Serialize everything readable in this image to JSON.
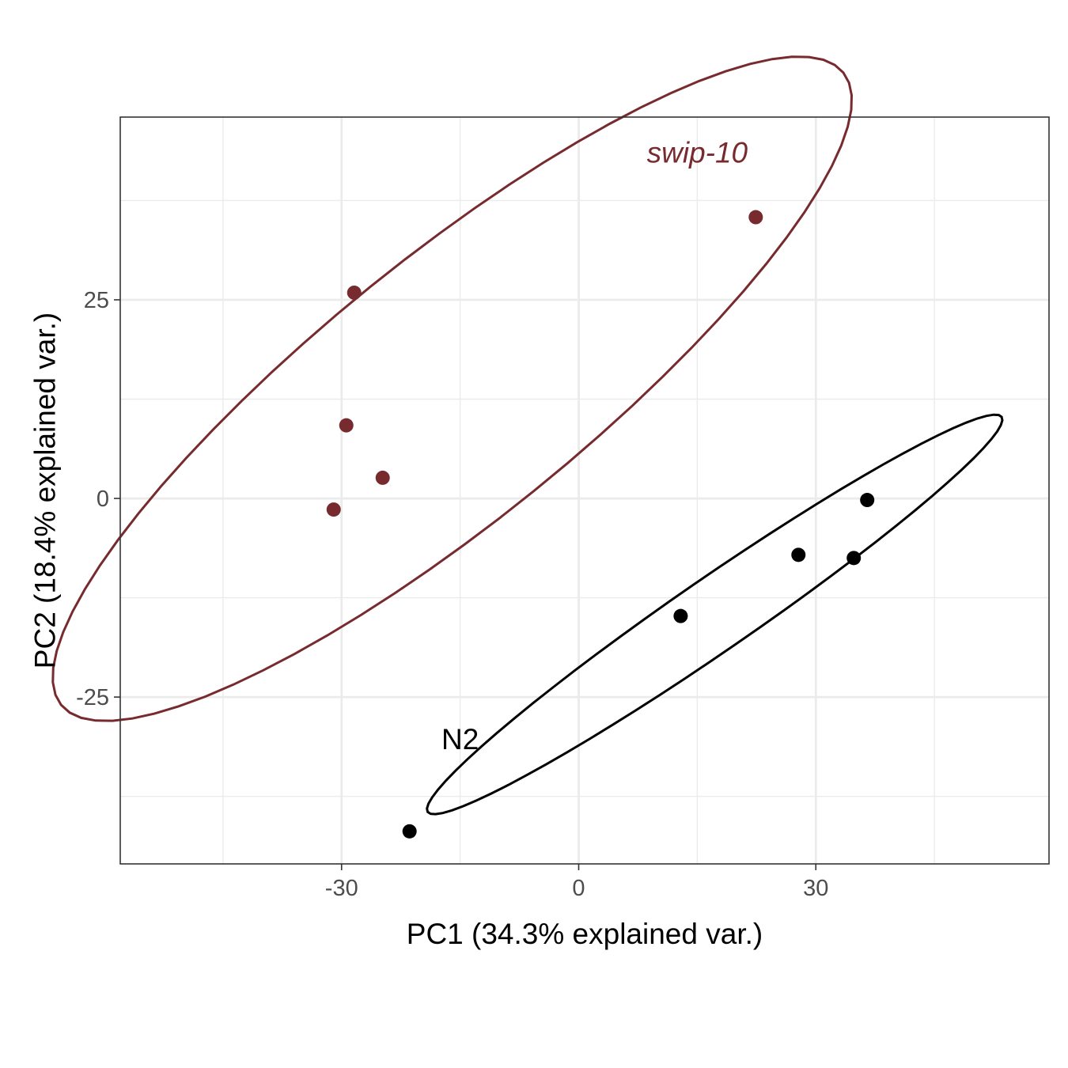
{
  "chart_data": {
    "type": "scatter",
    "title": "",
    "xlabel": "PC1 (34.3% explained var.)",
    "ylabel": "PC2 (18.4% explained var.)",
    "xlim": [
      -58,
      59.5
    ],
    "ylim": [
      -46,
      48
    ],
    "x_ticks": [
      -30,
      0,
      30
    ],
    "y_ticks": [
      -25,
      0,
      25
    ],
    "x_tick_labels": [
      "-30",
      "0",
      "30"
    ],
    "y_tick_labels": [
      "-25",
      "0",
      "25"
    ],
    "grid": true,
    "legend": "none",
    "series": [
      {
        "name": "swip-10",
        "label_italic": true,
        "color": "#772B2E",
        "label_position": [
          15,
          43.5
        ],
        "points": [
          {
            "x": -28.4,
            "y": 25.9
          },
          {
            "x": -29.4,
            "y": 9.2
          },
          {
            "x": -24.8,
            "y": 2.6
          },
          {
            "x": -31.0,
            "y": -1.4
          },
          {
            "x": 22.4,
            "y": 35.4
          }
        ],
        "ellipse": {
          "center": [
            -16,
            13.8
          ],
          "angle_deg": 38.8,
          "semi_major": 63.5,
          "semi_minor": 16.5
        }
      },
      {
        "name": "N2",
        "label_italic": false,
        "color": "#000000",
        "label_position": [
          -15,
          -30.3
        ],
        "points": [
          {
            "x": -21.4,
            "y": -41.9
          },
          {
            "x": 12.9,
            "y": -14.8
          },
          {
            "x": 27.8,
            "y": -7.1
          },
          {
            "x": 34.8,
            "y": -7.5
          },
          {
            "x": 36.5,
            "y": -0.2
          }
        ],
        "ellipse": {
          "center": [
            17.2,
            -14.6
          ],
          "angle_deg": 34.4,
          "semi_major": 44,
          "semi_minor": 4.6
        }
      }
    ]
  }
}
